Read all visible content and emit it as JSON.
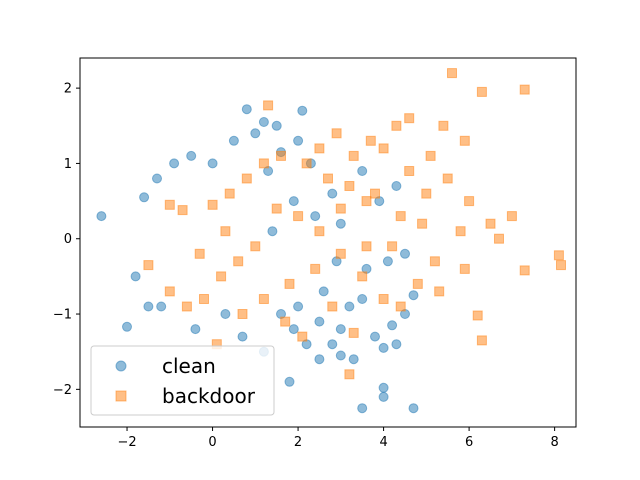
{
  "chart_data": {
    "type": "scatter",
    "title": "",
    "xlabel": "",
    "ylabel": "",
    "xlim": [
      -3.1,
      8.5
    ],
    "ylim": [
      -2.5,
      2.4
    ],
    "xticks": [
      -2,
      0,
      2,
      4,
      6,
      8
    ],
    "yticks": [
      -2,
      -1,
      0,
      1,
      2
    ],
    "grid": false,
    "legend_position": "lower-left",
    "series": [
      {
        "name": "clean",
        "marker": "circle",
        "color": "#1f77b4",
        "alpha": 0.5,
        "points": [
          [
            -2.6,
            0.3
          ],
          [
            -2.0,
            -1.17
          ],
          [
            0.8,
            1.72
          ],
          [
            2.1,
            1.7
          ],
          [
            1.2,
            1.55
          ],
          [
            -1.6,
            0.55
          ],
          [
            -1.8,
            -0.5
          ],
          [
            -1.3,
            0.8
          ],
          [
            -0.9,
            1.0
          ],
          [
            -0.5,
            1.1
          ],
          [
            0.0,
            1.0
          ],
          [
            0.5,
            1.3
          ],
          [
            1.0,
            1.4
          ],
          [
            1.5,
            1.5
          ],
          [
            -1.5,
            -0.9
          ],
          [
            -1.2,
            -0.9
          ],
          [
            -0.4,
            -1.2
          ],
          [
            0.3,
            -1.0
          ],
          [
            0.7,
            -1.3
          ],
          [
            1.2,
            -1.5
          ],
          [
            1.8,
            -1.9
          ],
          [
            2.5,
            -1.6
          ],
          [
            3.0,
            -1.55
          ],
          [
            3.5,
            -2.25
          ],
          [
            4.0,
            -1.98
          ],
          [
            4.0,
            -2.1
          ],
          [
            4.7,
            -2.25
          ],
          [
            3.3,
            -1.6
          ],
          [
            4.0,
            -1.45
          ],
          [
            4.3,
            -1.4
          ],
          [
            3.8,
            -1.3
          ],
          [
            4.2,
            -1.15
          ],
          [
            4.5,
            -1.0
          ],
          [
            4.7,
            -0.75
          ],
          [
            3.5,
            -0.8
          ],
          [
            3.0,
            -1.2
          ],
          [
            2.8,
            -1.4
          ],
          [
            2.5,
            -1.1
          ],
          [
            2.2,
            -1.4
          ],
          [
            1.9,
            -1.2
          ],
          [
            1.6,
            -1.0
          ],
          [
            2.0,
            -0.9
          ],
          [
            2.6,
            -0.7
          ],
          [
            3.2,
            -0.9
          ],
          [
            3.6,
            -0.4
          ],
          [
            4.1,
            -0.3
          ],
          [
            4.5,
            -0.2
          ],
          [
            3.9,
            0.5
          ],
          [
            3.5,
            0.9
          ],
          [
            2.8,
            0.6
          ],
          [
            2.3,
            1.0
          ],
          [
            2.0,
            1.3
          ],
          [
            1.6,
            1.15
          ],
          [
            1.3,
            0.9
          ],
          [
            2.4,
            0.3
          ],
          [
            1.9,
            0.5
          ],
          [
            3.0,
            0.2
          ],
          [
            4.3,
            0.7
          ],
          [
            2.9,
            -0.3
          ],
          [
            1.4,
            0.1
          ]
        ]
      },
      {
        "name": "backdoor",
        "marker": "square",
        "color": "#ff7f0e",
        "alpha": 0.5,
        "points": [
          [
            5.6,
            2.2
          ],
          [
            6.3,
            1.95
          ],
          [
            7.3,
            1.98
          ],
          [
            1.3,
            1.77
          ],
          [
            8.1,
            -0.22
          ],
          [
            8.15,
            -0.35
          ],
          [
            7.3,
            -0.42
          ],
          [
            6.2,
            -1.02
          ],
          [
            6.3,
            -1.35
          ],
          [
            3.2,
            -1.8
          ],
          [
            5.4,
            1.5
          ],
          [
            5.9,
            1.3
          ],
          [
            4.6,
            1.6
          ],
          [
            2.9,
            1.4
          ],
          [
            2.5,
            1.2
          ],
          [
            3.3,
            1.1
          ],
          [
            4.0,
            1.2
          ],
          [
            3.6,
            0.5
          ],
          [
            5.0,
            0.6
          ],
          [
            5.5,
            0.8
          ],
          [
            6.0,
            0.5
          ],
          [
            6.5,
            0.2
          ],
          [
            7.0,
            0.3
          ],
          [
            6.7,
            0.0
          ],
          [
            5.8,
            0.1
          ],
          [
            5.2,
            -0.3
          ],
          [
            4.8,
            -0.6
          ],
          [
            5.3,
            -0.7
          ],
          [
            5.9,
            -0.4
          ],
          [
            4.4,
            -0.9
          ],
          [
            4.0,
            -0.8
          ],
          [
            3.5,
            -0.5
          ],
          [
            3.0,
            -0.2
          ],
          [
            2.5,
            0.1
          ],
          [
            2.0,
            0.3
          ],
          [
            1.5,
            0.4
          ],
          [
            1.0,
            -0.1
          ],
          [
            0.6,
            -0.3
          ],
          [
            0.2,
            -0.5
          ],
          [
            -0.2,
            -0.8
          ],
          [
            -0.6,
            -0.9
          ],
          [
            -1.0,
            -0.7
          ],
          [
            -1.5,
            -0.35
          ],
          [
            -1.0,
            0.45
          ],
          [
            -0.7,
            0.38
          ],
          [
            0.0,
            0.45
          ],
          [
            0.4,
            0.6
          ],
          [
            0.8,
            0.8
          ],
          [
            1.2,
            1.0
          ],
          [
            1.6,
            1.1
          ],
          [
            2.2,
            1.0
          ],
          [
            2.7,
            0.8
          ],
          [
            3.2,
            0.7
          ],
          [
            3.8,
            0.6
          ],
          [
            4.4,
            0.3
          ],
          [
            4.9,
            0.2
          ],
          [
            4.2,
            -0.1
          ],
          [
            3.6,
            -0.1
          ],
          [
            3.0,
            0.4
          ],
          [
            2.4,
            -0.4
          ],
          [
            1.8,
            -0.6
          ],
          [
            1.2,
            -0.8
          ],
          [
            0.7,
            -1.0
          ],
          [
            0.1,
            -1.4
          ],
          [
            -0.3,
            -0.2
          ],
          [
            0.3,
            0.1
          ],
          [
            4.6,
            0.9
          ],
          [
            5.1,
            1.1
          ],
          [
            3.7,
            1.3
          ],
          [
            4.3,
            1.5
          ],
          [
            2.8,
            -0.9
          ],
          [
            3.3,
            -1.25
          ],
          [
            1.7,
            -1.1
          ],
          [
            2.1,
            -1.3
          ]
        ]
      }
    ]
  }
}
